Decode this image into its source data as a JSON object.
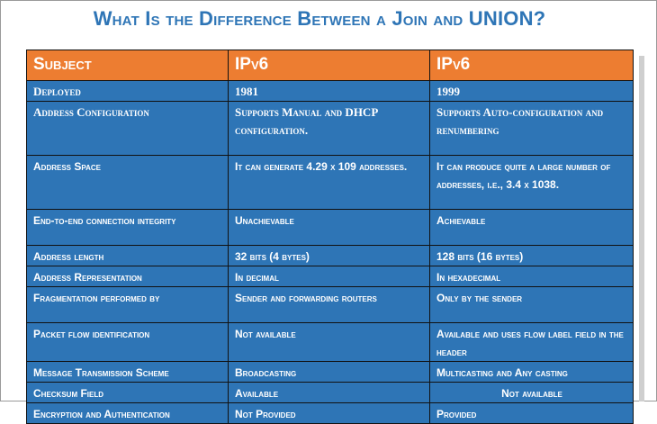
{
  "title": "What Is the Difference Between a Join and UNION?",
  "table": {
    "headers": [
      "Subject",
      "IPv6",
      "IPv6"
    ],
    "rows": [
      [
        "Deployed",
        "1981",
        "1999"
      ],
      [
        "Address Configuration",
        "Supports Manual and DHCP configuration.",
        "Supports Auto-configuration and renumbering"
      ],
      [
        "Address Space",
        "It can generate 4.29 x 109 addresses.",
        "It can produce quite a large number of addresses, i.e., 3.4 x 1038."
      ],
      [
        "End-to-end connection integrity",
        "Unachievable",
        "Achievable"
      ],
      [
        "Address length",
        "32 bits (4 bytes)",
        "128 bits (16 bytes)"
      ],
      [
        "Address Representation",
        "In decimal",
        "In hexadecimal"
      ],
      [
        "Fragmentation performed by",
        "Sender and forwarding routers",
        "Only by the sender"
      ],
      [
        "Packet flow identification",
        "Not available",
        "Available and uses flow label field in the header"
      ],
      [
        "Message Transmission Scheme",
        "Broadcasting",
        "Multicasting and Any casting"
      ],
      [
        "Checksum Field",
        "Available",
        "Not available"
      ],
      [
        "Encryption and Authentication",
        "Not Provided",
        "Provided"
      ]
    ]
  },
  "colors": {
    "header_bg": "#ed7d31",
    "cell_bg": "#2e75b6",
    "title": "#2e75b6"
  }
}
